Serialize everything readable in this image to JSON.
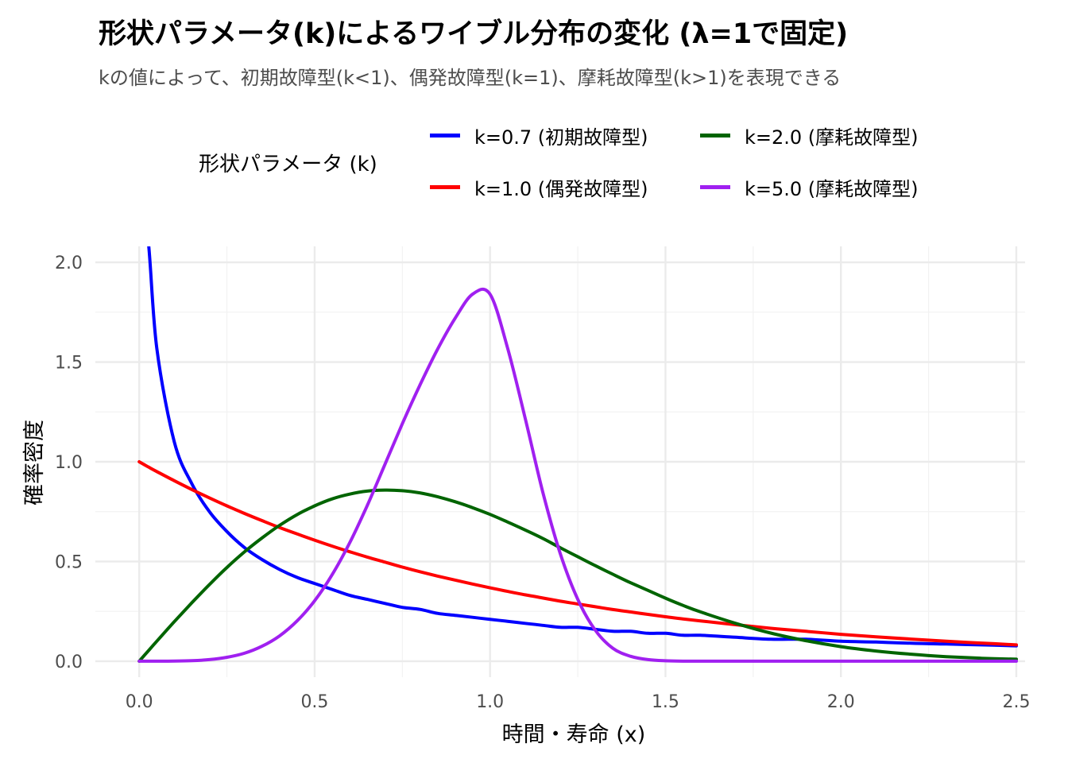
{
  "chart_data": {
    "type": "line",
    "title": "形状パラメータ(k)によるワイブル分布の変化 (λ=1で固定)",
    "subtitle": "kの値によって、初期故障型(k<1)、偶発故障型(k=1)、摩耗故障型(k>1)を表現できる",
    "xlabel": "時間・寿命 (x)",
    "ylabel": "確率密度",
    "xlim": [
      -0.125,
      2.525
    ],
    "ylim": [
      -0.08,
      2.08
    ],
    "xticks": [
      0,
      0.5,
      1,
      1.5,
      2,
      2.5
    ],
    "xtick_labels": [
      "0.0",
      "0.5",
      "1.0",
      "1.5",
      "2.0",
      "2.5"
    ],
    "yticks": [
      0,
      0.5,
      1,
      1.5,
      2
    ],
    "ytick_labels": [
      "0.0",
      "0.5",
      "1.0",
      "1.5",
      "2.0"
    ],
    "grid": true,
    "legend": {
      "title": "形状パラメータ (k)",
      "position": "top"
    },
    "x": [
      0,
      0.025,
      0.05,
      0.1,
      0.15,
      0.2,
      0.25,
      0.3,
      0.35,
      0.4,
      0.45,
      0.5,
      0.55,
      0.6,
      0.65,
      0.7,
      0.75,
      0.8,
      0.85,
      0.9,
      0.95,
      1.0,
      1.05,
      1.1,
      1.15,
      1.2,
      1.25,
      1.3,
      1.35,
      1.4,
      1.45,
      1.5,
      1.55,
      1.6,
      1.7,
      1.8,
      1.9,
      2.0,
      2.1,
      2.2,
      2.3,
      2.4,
      2.5
    ],
    "series": [
      {
        "name": "k=0.7 (初期故障型)",
        "color": "#0000ff",
        "values": [
          null,
          2.12,
          1.57,
          1.1,
          0.89,
          0.75,
          0.65,
          0.57,
          0.51,
          0.46,
          0.42,
          0.39,
          0.36,
          0.33,
          0.31,
          0.29,
          0.27,
          0.26,
          0.24,
          0.23,
          0.22,
          0.21,
          0.2,
          0.19,
          0.18,
          0.17,
          0.17,
          0.16,
          0.15,
          0.15,
          0.14,
          0.14,
          0.13,
          0.13,
          0.12,
          0.11,
          0.11,
          0.1,
          0.096,
          0.09,
          0.086,
          0.082,
          0.077
        ]
      },
      {
        "name": "k=1.0 (偶発故障型)",
        "color": "#ff0000",
        "values": [
          1.0,
          0.975,
          0.951,
          0.905,
          0.861,
          0.819,
          0.779,
          0.741,
          0.705,
          0.67,
          0.638,
          0.607,
          0.577,
          0.549,
          0.522,
          0.497,
          0.472,
          0.449,
          0.427,
          0.407,
          0.387,
          0.368,
          0.35,
          0.333,
          0.317,
          0.301,
          0.287,
          0.273,
          0.259,
          0.247,
          0.235,
          0.223,
          0.212,
          0.202,
          0.183,
          0.165,
          0.15,
          0.135,
          0.122,
          0.111,
          0.1,
          0.091,
          0.082
        ]
      },
      {
        "name": "k=2.0 (摩耗故障型)",
        "color": "#006400",
        "values": [
          0,
          0.05,
          0.1,
          0.198,
          0.293,
          0.384,
          0.47,
          0.548,
          0.618,
          0.681,
          0.735,
          0.779,
          0.814,
          0.838,
          0.853,
          0.858,
          0.855,
          0.844,
          0.825,
          0.8,
          0.77,
          0.736,
          0.698,
          0.658,
          0.616,
          0.569,
          0.524,
          0.479,
          0.436,
          0.394,
          0.355,
          0.316,
          0.28,
          0.247,
          0.19,
          0.141,
          0.103,
          0.073,
          0.051,
          0.035,
          0.023,
          0.015,
          0.01
        ]
      },
      {
        "name": "k=5.0 (摩耗故障型)",
        "color": "#a020f0",
        "values": [
          0,
          0,
          0,
          0.0005,
          0.0025,
          0.008,
          0.0195,
          0.04,
          0.075,
          0.127,
          0.202,
          0.303,
          0.434,
          0.594,
          0.781,
          0.985,
          1.191,
          1.384,
          1.563,
          1.718,
          1.84,
          1.84,
          1.57,
          1.22,
          0.85,
          0.54,
          0.31,
          0.155,
          0.065,
          0.025,
          0.008,
          0.002,
          0.0003,
          0,
          0,
          0,
          0,
          0,
          0,
          0,
          0,
          0,
          0
        ]
      }
    ]
  }
}
